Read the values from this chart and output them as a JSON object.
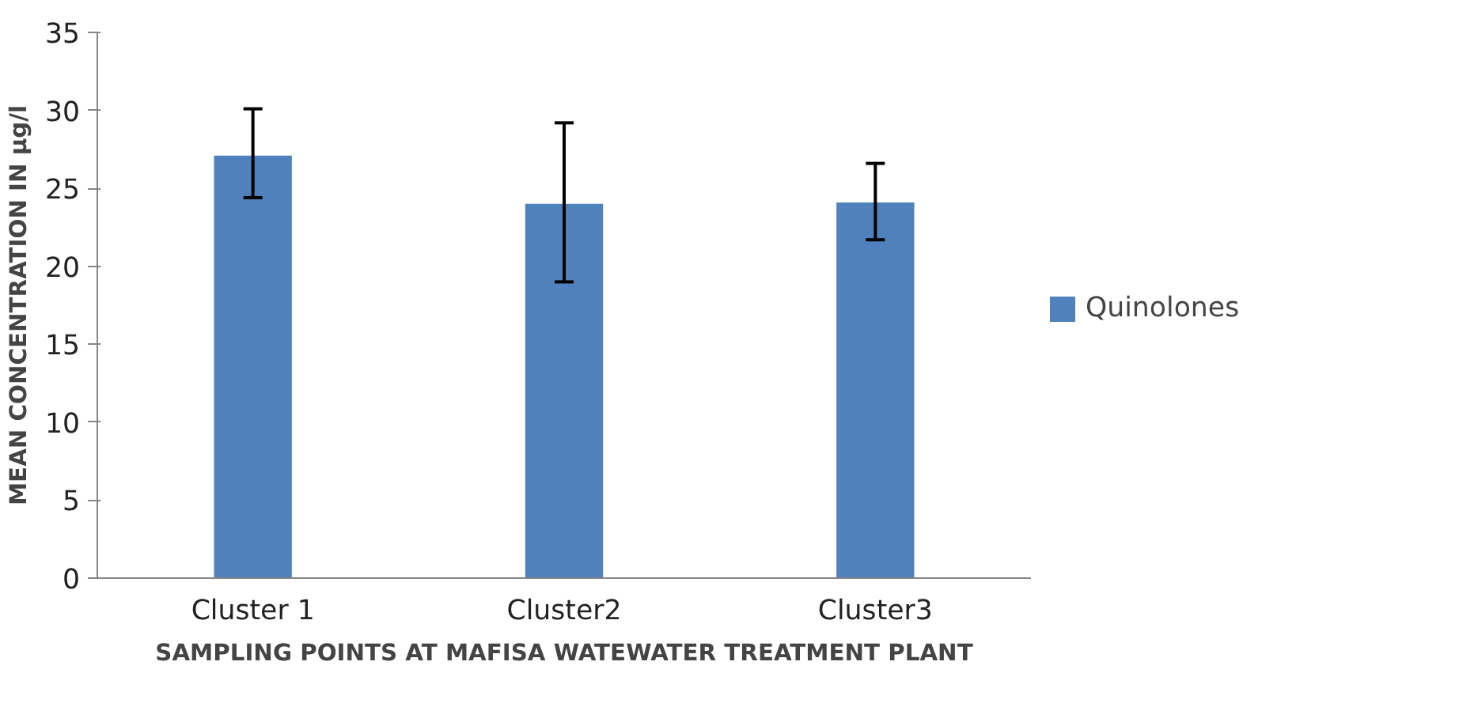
{
  "chart_data": {
    "type": "bar",
    "xlabel": "SAMPLING POINTS AT MAFISA WATEWATER TREATMENT PLANT",
    "ylabel": "MEAN CONCENTRATION IN µg/l",
    "categories": [
      "Cluster 1",
      "Cluster2",
      "Cluster3"
    ],
    "series": [
      {
        "name": "Quinolones",
        "color": "#4f81bd",
        "values": [
          27.1,
          24.0,
          24.1
        ],
        "errors": [
          [
            24.4,
            30.1
          ],
          [
            19.0,
            29.2
          ],
          [
            21.7,
            26.6
          ]
        ]
      }
    ],
    "ylim": [
      0,
      35
    ],
    "yticks": [
      0,
      5,
      10,
      15,
      20,
      25,
      30,
      35
    ],
    "grid": false,
    "legend": "right"
  }
}
